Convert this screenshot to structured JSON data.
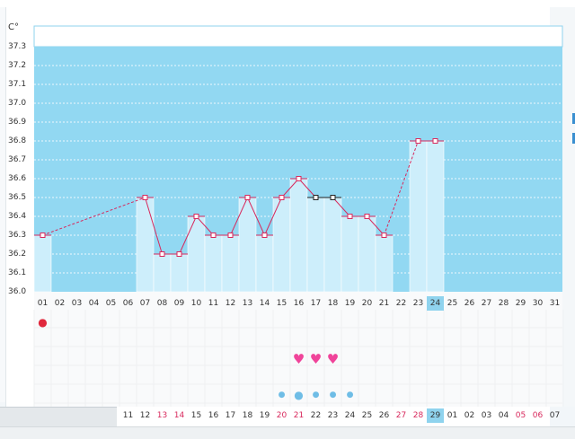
{
  "chart_data": {
    "type": "bar",
    "unit_label": "C°",
    "ylim": [
      36.0,
      37.3
    ],
    "yticks": [
      "37.3",
      "37.2",
      "37.1",
      "37.0",
      "36.9",
      "36.8",
      "36.7",
      "36.6",
      "36.5",
      "36.4",
      "36.3",
      "36.2",
      "36.1",
      "36.0"
    ],
    "categories": [
      "01",
      "02",
      "03",
      "04",
      "05",
      "06",
      "07",
      "08",
      "09",
      "10",
      "11",
      "12",
      "13",
      "14",
      "15",
      "16",
      "17",
      "18",
      "19",
      "20",
      "21",
      "22",
      "23",
      "24",
      "25",
      "26",
      "27",
      "28",
      "29",
      "30",
      "31"
    ],
    "values": [
      36.3,
      null,
      null,
      null,
      null,
      null,
      36.5,
      36.2,
      36.2,
      36.4,
      36.3,
      36.3,
      36.5,
      36.3,
      36.5,
      36.6,
      36.5,
      36.5,
      36.4,
      36.4,
      36.3,
      null,
      36.8,
      36.8,
      null,
      null,
      null,
      null,
      null,
      null,
      null
    ],
    "highlight_marker_days": [
      "17",
      "18"
    ],
    "selected_day": "24",
    "grid": true,
    "colors": {
      "plot_bg": "#92d8f2",
      "bar": "#cdeefb",
      "line": "#d8285c",
      "highlight": "#8fd3ee"
    }
  },
  "symbols": {
    "drop_days": [
      "01"
    ],
    "heart_days": [
      "16",
      "17",
      "18"
    ],
    "mucus_days": [
      {
        "day": "15",
        "icon": "drop-curl-icon"
      },
      {
        "day": "16",
        "icon": "drop-oval-icon"
      },
      {
        "day": "17",
        "icon": "drop-icon"
      },
      {
        "day": "18",
        "icon": "drop-icon"
      },
      {
        "day": "19",
        "icon": "drop-curl-icon"
      }
    ]
  },
  "bottom_labels": [
    {
      "t": "11",
      "c": ""
    },
    {
      "t": "12",
      "c": ""
    },
    {
      "t": "13",
      "c": "red"
    },
    {
      "t": "14",
      "c": "red"
    },
    {
      "t": "15",
      "c": ""
    },
    {
      "t": "16",
      "c": ""
    },
    {
      "t": "17",
      "c": ""
    },
    {
      "t": "18",
      "c": ""
    },
    {
      "t": "19",
      "c": ""
    },
    {
      "t": "20",
      "c": "red"
    },
    {
      "t": "21",
      "c": "red"
    },
    {
      "t": "22",
      "c": ""
    },
    {
      "t": "23",
      "c": ""
    },
    {
      "t": "24",
      "c": ""
    },
    {
      "t": "25",
      "c": ""
    },
    {
      "t": "26",
      "c": ""
    },
    {
      "t": "27",
      "c": "red"
    },
    {
      "t": "28",
      "c": "red"
    },
    {
      "t": "29",
      "c": "sel"
    },
    {
      "t": "01",
      "c": ""
    },
    {
      "t": "02",
      "c": ""
    },
    {
      "t": "03",
      "c": ""
    },
    {
      "t": "04",
      "c": ""
    },
    {
      "t": "05",
      "c": "red"
    },
    {
      "t": "06",
      "c": "red"
    },
    {
      "t": "07",
      "c": ""
    }
  ]
}
